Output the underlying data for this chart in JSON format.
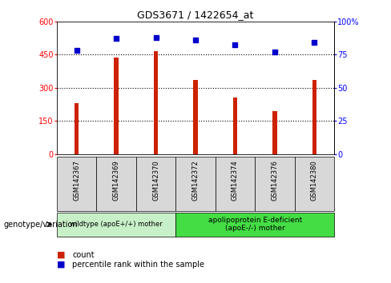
{
  "title": "GDS3671 / 1422654_at",
  "categories": [
    "GSM142367",
    "GSM142369",
    "GSM142370",
    "GSM142372",
    "GSM142374",
    "GSM142376",
    "GSM142380"
  ],
  "counts": [
    230,
    435,
    465,
    335,
    255,
    195,
    335
  ],
  "percentiles": [
    78,
    87,
    88,
    86,
    82,
    77,
    84
  ],
  "bar_color": "#cc2200",
  "dot_color": "#0000cc",
  "ylim_left": [
    0,
    600
  ],
  "ylim_right": [
    0,
    100
  ],
  "yticks_left": [
    0,
    150,
    300,
    450,
    600
  ],
  "ytick_labels_left": [
    "0",
    "150",
    "300",
    "450",
    "600"
  ],
  "yticks_right": [
    0,
    25,
    50,
    75,
    100
  ],
  "ytick_labels_right": [
    "0",
    "25",
    "50",
    "75",
    "100%"
  ],
  "group1_indices": [
    0,
    1,
    2
  ],
  "group2_indices": [
    3,
    4,
    5,
    6
  ],
  "group1_label": "wildtype (apoE+/+) mother",
  "group2_label": "apolipoprotein E-deficient\n(apoE-/-) mother",
  "group1_color": "#c8f0c8",
  "group2_color": "#44dd44",
  "xlabel_annotation": "genotype/variation",
  "legend_count_label": "count",
  "legend_percentile_label": "percentile rank within the sample",
  "bar_width": 0.12,
  "category_bg_color": "#d8d8d8"
}
